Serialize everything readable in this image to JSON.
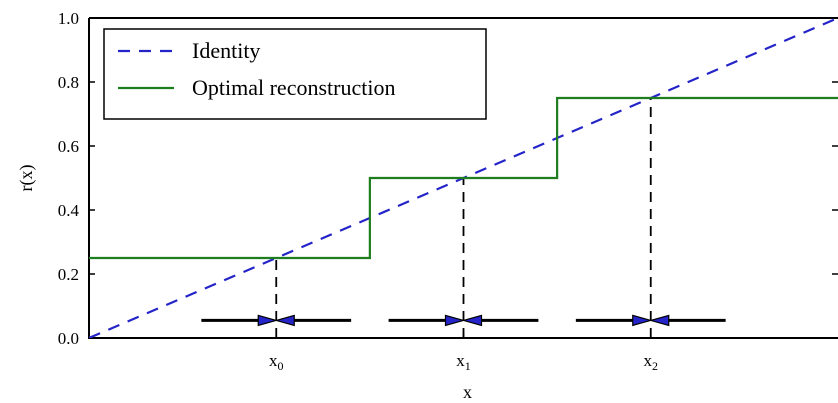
{
  "chart_data": {
    "type": "line",
    "xlabel": "x",
    "ylabel": "r(x)",
    "xlim": [
      0,
      1
    ],
    "ylim": [
      0,
      1
    ],
    "yticks": [
      "0.0",
      "0.2",
      "0.4",
      "0.6",
      "0.8",
      "1.0"
    ],
    "xticks": [
      {
        "base": "x",
        "sub": "0",
        "value": 0.25
      },
      {
        "base": "x",
        "sub": "1",
        "value": 0.5
      },
      {
        "base": "x",
        "sub": "2",
        "value": 0.75
      }
    ],
    "series": [
      {
        "name": "Identity",
        "style": "dashed",
        "color": "#2424c8",
        "x": [
          0,
          1
        ],
        "y": [
          0,
          1
        ]
      },
      {
        "name": "Optimal reconstruction",
        "style": "solid",
        "color": "#1e7d1e",
        "x": [
          0.0,
          0.375,
          0.375,
          0.625,
          0.625,
          1.0
        ],
        "y": [
          0.25,
          0.25,
          0.5,
          0.5,
          0.75,
          0.75
        ]
      }
    ],
    "dashed_markers": [
      {
        "x": 0.25,
        "y": 0.25
      },
      {
        "x": 0.5,
        "y": 0.5
      },
      {
        "x": 0.75,
        "y": 0.75
      }
    ],
    "arrows": [
      {
        "from": 0.15,
        "to": 0.25
      },
      {
        "from": 0.35,
        "to": 0.25
      },
      {
        "from": 0.4,
        "to": 0.5
      },
      {
        "from": 0.6,
        "to": 0.5
      },
      {
        "from": 0.65,
        "to": 0.75
      },
      {
        "from": 0.85,
        "to": 0.75
      }
    ],
    "arrow_y": 0.055,
    "grid": false,
    "legend_position": "top-left"
  }
}
